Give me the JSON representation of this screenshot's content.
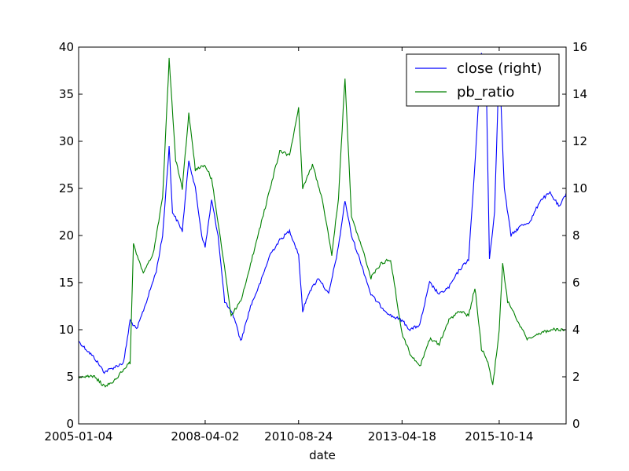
{
  "chart_data": {
    "type": "line",
    "xlabel": "date",
    "x_tick_labels": [
      "2005-01-04",
      "2008-04-02",
      "2010-08-24",
      "2013-04-18",
      "2015-10-14"
    ],
    "x_range": [
      "2005-01-04",
      "2017-07-01"
    ],
    "y_left": {
      "lim": [
        0,
        40
      ],
      "ticks": [
        "0",
        "5",
        "10",
        "15",
        "20",
        "25",
        "30",
        "35",
        "40"
      ]
    },
    "y_right": {
      "lim": [
        0,
        16
      ],
      "ticks": [
        "0",
        "2",
        "4",
        "6",
        "8",
        "10",
        "12",
        "14",
        "16"
      ]
    },
    "grid": false,
    "legend_placement": "top-right",
    "series": [
      {
        "name": "close (right)",
        "axis": "right",
        "color": "#0000ff",
        "points": [
          [
            "2005-01-04",
            3.5
          ],
          [
            "2005-06-01",
            2.8
          ],
          [
            "2005-09-01",
            2.2
          ],
          [
            "2005-12-01",
            2.4
          ],
          [
            "2006-03-01",
            2.6
          ],
          [
            "2006-05-01",
            4.4
          ],
          [
            "2006-07-01",
            4.0
          ],
          [
            "2006-10-01",
            5.2
          ],
          [
            "2007-01-01",
            6.5
          ],
          [
            "2007-03-01",
            8.0
          ],
          [
            "2007-05-01",
            11.8
          ],
          [
            "2007-06-01",
            9.0
          ],
          [
            "2007-09-01",
            8.2
          ],
          [
            "2007-11-01",
            11.2
          ],
          [
            "2008-01-01",
            10.0
          ],
          [
            "2008-03-01",
            8.0
          ],
          [
            "2008-04-02",
            7.5
          ],
          [
            "2008-06-01",
            9.5
          ],
          [
            "2008-08-01",
            8.0
          ],
          [
            "2008-10-01",
            5.2
          ],
          [
            "2009-01-01",
            4.5
          ],
          [
            "2009-03-01",
            3.5
          ],
          [
            "2009-06-01",
            5.0
          ],
          [
            "2009-09-01",
            6.0
          ],
          [
            "2009-12-01",
            7.2
          ],
          [
            "2010-03-01",
            7.8
          ],
          [
            "2010-06-01",
            8.2
          ],
          [
            "2010-08-24",
            7.2
          ],
          [
            "2010-10-01",
            4.8
          ],
          [
            "2010-12-01",
            5.6
          ],
          [
            "2011-03-01",
            6.2
          ],
          [
            "2011-06-01",
            5.5
          ],
          [
            "2011-09-01",
            7.5
          ],
          [
            "2011-11-01",
            9.5
          ],
          [
            "2012-01-01",
            8.0
          ],
          [
            "2012-04-01",
            6.8
          ],
          [
            "2012-07-01",
            5.5
          ],
          [
            "2012-10-01",
            5.0
          ],
          [
            "2013-01-01",
            4.6
          ],
          [
            "2013-04-18",
            4.4
          ],
          [
            "2013-07-01",
            4.0
          ],
          [
            "2013-10-01",
            4.2
          ],
          [
            "2014-01-01",
            6.0
          ],
          [
            "2014-04-01",
            5.5
          ],
          [
            "2014-07-01",
            5.8
          ],
          [
            "2014-10-01",
            6.5
          ],
          [
            "2015-01-01",
            7.0
          ],
          [
            "2015-03-01",
            11.0
          ],
          [
            "2015-05-01",
            15.8
          ],
          [
            "2015-06-15",
            14.5
          ],
          [
            "2015-07-15",
            7.0
          ],
          [
            "2015-09-01",
            9.0
          ],
          [
            "2015-10-14",
            15.5
          ],
          [
            "2015-12-01",
            10.0
          ],
          [
            "2016-02-01",
            8.0
          ],
          [
            "2016-05-01",
            8.4
          ],
          [
            "2016-08-01",
            8.6
          ],
          [
            "2016-11-01",
            9.5
          ],
          [
            "2017-02-01",
            9.8
          ],
          [
            "2017-05-01",
            9.2
          ],
          [
            "2017-07-01",
            9.8
          ]
        ]
      },
      {
        "name": "pb_ratio",
        "axis": "left",
        "color": "#008000",
        "points": [
          [
            "2005-01-04",
            5.0
          ],
          [
            "2005-06-01",
            5.0
          ],
          [
            "2005-09-01",
            4.0
          ],
          [
            "2005-12-01",
            4.5
          ],
          [
            "2006-03-01",
            5.8
          ],
          [
            "2006-05-01",
            6.5
          ],
          [
            "2006-06-01",
            19.0
          ],
          [
            "2006-09-01",
            16.0
          ],
          [
            "2006-12-01",
            18.0
          ],
          [
            "2007-03-01",
            24.0
          ],
          [
            "2007-05-01",
            38.8
          ],
          [
            "2007-07-01",
            28.0
          ],
          [
            "2007-09-01",
            25.0
          ],
          [
            "2007-11-01",
            33.0
          ],
          [
            "2008-01-01",
            27.0
          ],
          [
            "2008-04-02",
            27.5
          ],
          [
            "2008-06-01",
            26.0
          ],
          [
            "2008-09-01",
            19.0
          ],
          [
            "2008-12-01",
            11.5
          ],
          [
            "2009-03-01",
            13.0
          ],
          [
            "2009-06-01",
            17.0
          ],
          [
            "2009-09-01",
            21.0
          ],
          [
            "2009-12-01",
            25.0
          ],
          [
            "2010-03-01",
            29.0
          ],
          [
            "2010-06-01",
            28.5
          ],
          [
            "2010-08-24",
            33.5
          ],
          [
            "2010-10-01",
            25.0
          ],
          [
            "2011-01-01",
            27.5
          ],
          [
            "2011-04-01",
            24.0
          ],
          [
            "2011-07-01",
            18.0
          ],
          [
            "2011-09-01",
            24.0
          ],
          [
            "2011-11-01",
            36.8
          ],
          [
            "2012-01-01",
            22.0
          ],
          [
            "2012-04-01",
            19.0
          ],
          [
            "2012-07-01",
            15.5
          ],
          [
            "2012-10-01",
            17.0
          ],
          [
            "2013-01-01",
            17.5
          ],
          [
            "2013-04-18",
            9.5
          ],
          [
            "2013-07-01",
            7.5
          ],
          [
            "2013-10-01",
            6.0
          ],
          [
            "2014-01-01",
            9.0
          ],
          [
            "2014-04-01",
            8.5
          ],
          [
            "2014-07-01",
            11.0
          ],
          [
            "2014-10-01",
            12.0
          ],
          [
            "2015-01-01",
            11.5
          ],
          [
            "2015-03-01",
            14.5
          ],
          [
            "2015-05-01",
            8.0
          ],
          [
            "2015-07-01",
            6.5
          ],
          [
            "2015-08-15",
            4.0
          ],
          [
            "2015-10-14",
            10.0
          ],
          [
            "2015-11-15",
            17.0
          ],
          [
            "2016-01-01",
            13.0
          ],
          [
            "2016-04-01",
            11.0
          ],
          [
            "2016-07-01",
            9.0
          ],
          [
            "2016-10-01",
            9.5
          ],
          [
            "2017-02-01",
            10.0
          ],
          [
            "2017-07-01",
            10.0
          ]
        ]
      }
    ]
  }
}
